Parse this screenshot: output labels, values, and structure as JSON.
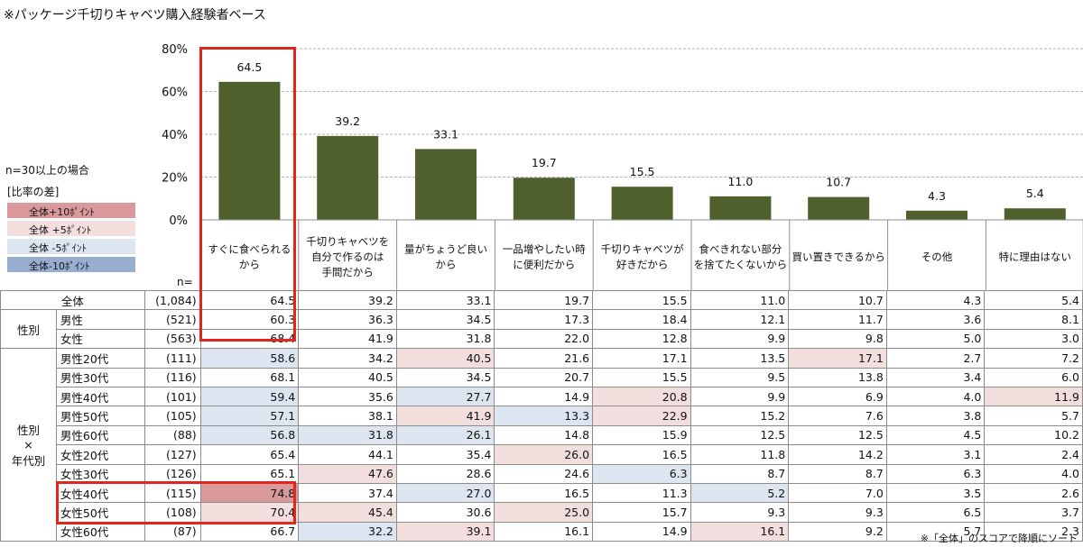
{
  "title": "※パッケージ千切りキャベツ購入経験者ベース",
  "footnote": "※「全体」のスコアで降順にソート",
  "threshold_note": "n=30以上の場合",
  "legend": {
    "title": "[比率の差]",
    "items": [
      {
        "label": "全体+10ﾎﾟｲﾝﾄ",
        "color": "#d9999b"
      },
      {
        "label": "全体 +5ﾎﾟｲﾝﾄ",
        "color": "#f3dede"
      },
      {
        "label": "全体 -5ﾎﾟｲﾝﾄ",
        "color": "#dde5f0"
      },
      {
        "label": "全体-10ﾎﾟｲﾝﾄ",
        "color": "#97aed0"
      }
    ]
  },
  "n_label": "n=",
  "colors": {
    "bar": "#4f602d",
    "gridline": "#b3b3b3",
    "highlight": "#e0261f",
    "plus10": "#d9999b",
    "plus5": "#f3dede",
    "minus5": "#dde5f0",
    "minus10": "#97aed0"
  },
  "chart_data": {
    "type": "bar",
    "categories": [
      "すぐに食べられる\nから",
      "千切りキャベツを\n自分で作るのは\n手間だから",
      "量がちょうど良い\nから",
      "一品増やしたい時\nに便利だから",
      "千切りキャベツが\n好きだから",
      "食べきれない部分\nを捨てたくないから",
      "買い置きできるから",
      "その他",
      "特に理由はない"
    ],
    "values": [
      64.5,
      39.2,
      33.1,
      19.7,
      15.5,
      11.0,
      10.7,
      4.3,
      5.4
    ],
    "value_labels": [
      "64.5",
      "39.2",
      "33.1",
      "19.7",
      "15.5",
      "11.0",
      "10.7",
      "4.3",
      "5.4"
    ],
    "ylim": [
      0,
      80
    ],
    "yticks": [
      "0%",
      "20%",
      "40%",
      "60%",
      "80%"
    ],
    "grid": true
  },
  "table": {
    "rows": [
      {
        "group": "",
        "label": "全体",
        "n": "(1,084)",
        "values": [
          "64.5",
          "39.2",
          "33.1",
          "19.7",
          "15.5",
          "11.0",
          "10.7",
          "4.3",
          "5.4"
        ],
        "shades": [
          "",
          "",
          "",
          "",
          "",
          "",
          "",
          "",
          ""
        ]
      },
      {
        "group": "性別",
        "label": "男性",
        "n": "(521)",
        "values": [
          "60.3",
          "36.3",
          "34.5",
          "17.3",
          "18.4",
          "12.1",
          "11.7",
          "3.6",
          "8.1"
        ],
        "shades": [
          "",
          "",
          "",
          "",
          "",
          "",
          "",
          "",
          ""
        ]
      },
      {
        "group": "",
        "label": "女性",
        "n": "(563)",
        "values": [
          "68.4",
          "41.9",
          "31.8",
          "22.0",
          "12.8",
          "9.9",
          "9.8",
          "5.0",
          "3.0"
        ],
        "shades": [
          "",
          "",
          "",
          "",
          "",
          "",
          "",
          "",
          ""
        ]
      },
      {
        "group": "性別\n×\n年代別",
        "label": "男性20代",
        "n": "(111)",
        "values": [
          "58.6",
          "34.2",
          "40.5",
          "21.6",
          "17.1",
          "13.5",
          "17.1",
          "2.7",
          "7.2"
        ],
        "shades": [
          "m5",
          "",
          "p5",
          "",
          "",
          "",
          "p5",
          "",
          ""
        ]
      },
      {
        "group": "",
        "label": "男性30代",
        "n": "(116)",
        "values": [
          "68.1",
          "40.5",
          "34.5",
          "20.7",
          "15.5",
          "9.5",
          "13.8",
          "3.4",
          "6.0"
        ],
        "shades": [
          "",
          "",
          "",
          "",
          "",
          "",
          "",
          "",
          ""
        ]
      },
      {
        "group": "",
        "label": "男性40代",
        "n": "(101)",
        "values": [
          "59.4",
          "35.6",
          "27.7",
          "14.9",
          "20.8",
          "9.9",
          "6.9",
          "4.0",
          "11.9"
        ],
        "shades": [
          "m5",
          "",
          "m5",
          "",
          "p5",
          "",
          "",
          "",
          "p5"
        ]
      },
      {
        "group": "",
        "label": "男性50代",
        "n": "(105)",
        "values": [
          "57.1",
          "38.1",
          "41.9",
          "13.3",
          "22.9",
          "15.2",
          "7.6",
          "3.8",
          "5.7"
        ],
        "shades": [
          "m5",
          "",
          "p5",
          "m5",
          "p5",
          "",
          "",
          "",
          ""
        ]
      },
      {
        "group": "",
        "label": "男性60代",
        "n": "(88)",
        "values": [
          "56.8",
          "31.8",
          "26.1",
          "14.8",
          "15.9",
          "12.5",
          "12.5",
          "4.5",
          "10.2"
        ],
        "shades": [
          "m5",
          "m5",
          "m5",
          "",
          "",
          "",
          "",
          "",
          ""
        ]
      },
      {
        "group": "",
        "label": "女性20代",
        "n": "(127)",
        "values": [
          "65.4",
          "44.1",
          "35.4",
          "26.0",
          "16.5",
          "11.8",
          "14.2",
          "3.1",
          "2.4"
        ],
        "shades": [
          "",
          "",
          "",
          "p5",
          "",
          "",
          "",
          "",
          ""
        ]
      },
      {
        "group": "",
        "label": "女性30代",
        "n": "(126)",
        "values": [
          "65.1",
          "47.6",
          "28.6",
          "24.6",
          "6.3",
          "8.7",
          "8.7",
          "6.3",
          "4.0"
        ],
        "shades": [
          "",
          "p5",
          "",
          "",
          "m5",
          "",
          "",
          "",
          ""
        ]
      },
      {
        "group": "",
        "label": "女性40代",
        "n": "(115)",
        "values": [
          "74.8",
          "37.4",
          "27.0",
          "16.5",
          "11.3",
          "5.2",
          "7.0",
          "3.5",
          "2.6"
        ],
        "shades": [
          "p10",
          "",
          "m5",
          "",
          "",
          "m5",
          "",
          "",
          ""
        ]
      },
      {
        "group": "",
        "label": "女性50代",
        "n": "(108)",
        "values": [
          "70.4",
          "45.4",
          "30.6",
          "25.0",
          "15.7",
          "9.3",
          "9.3",
          "6.5",
          "3.7"
        ],
        "shades": [
          "p5",
          "p5",
          "",
          "p5",
          "",
          "",
          "",
          "",
          ""
        ]
      },
      {
        "group": "",
        "label": "女性60代",
        "n": "(87)",
        "values": [
          "66.7",
          "32.2",
          "39.1",
          "16.1",
          "14.9",
          "16.1",
          "9.2",
          "5.7",
          "2.3"
        ],
        "shades": [
          "",
          "m5",
          "p5",
          "",
          "",
          "p5",
          "",
          "",
          ""
        ]
      }
    ]
  }
}
